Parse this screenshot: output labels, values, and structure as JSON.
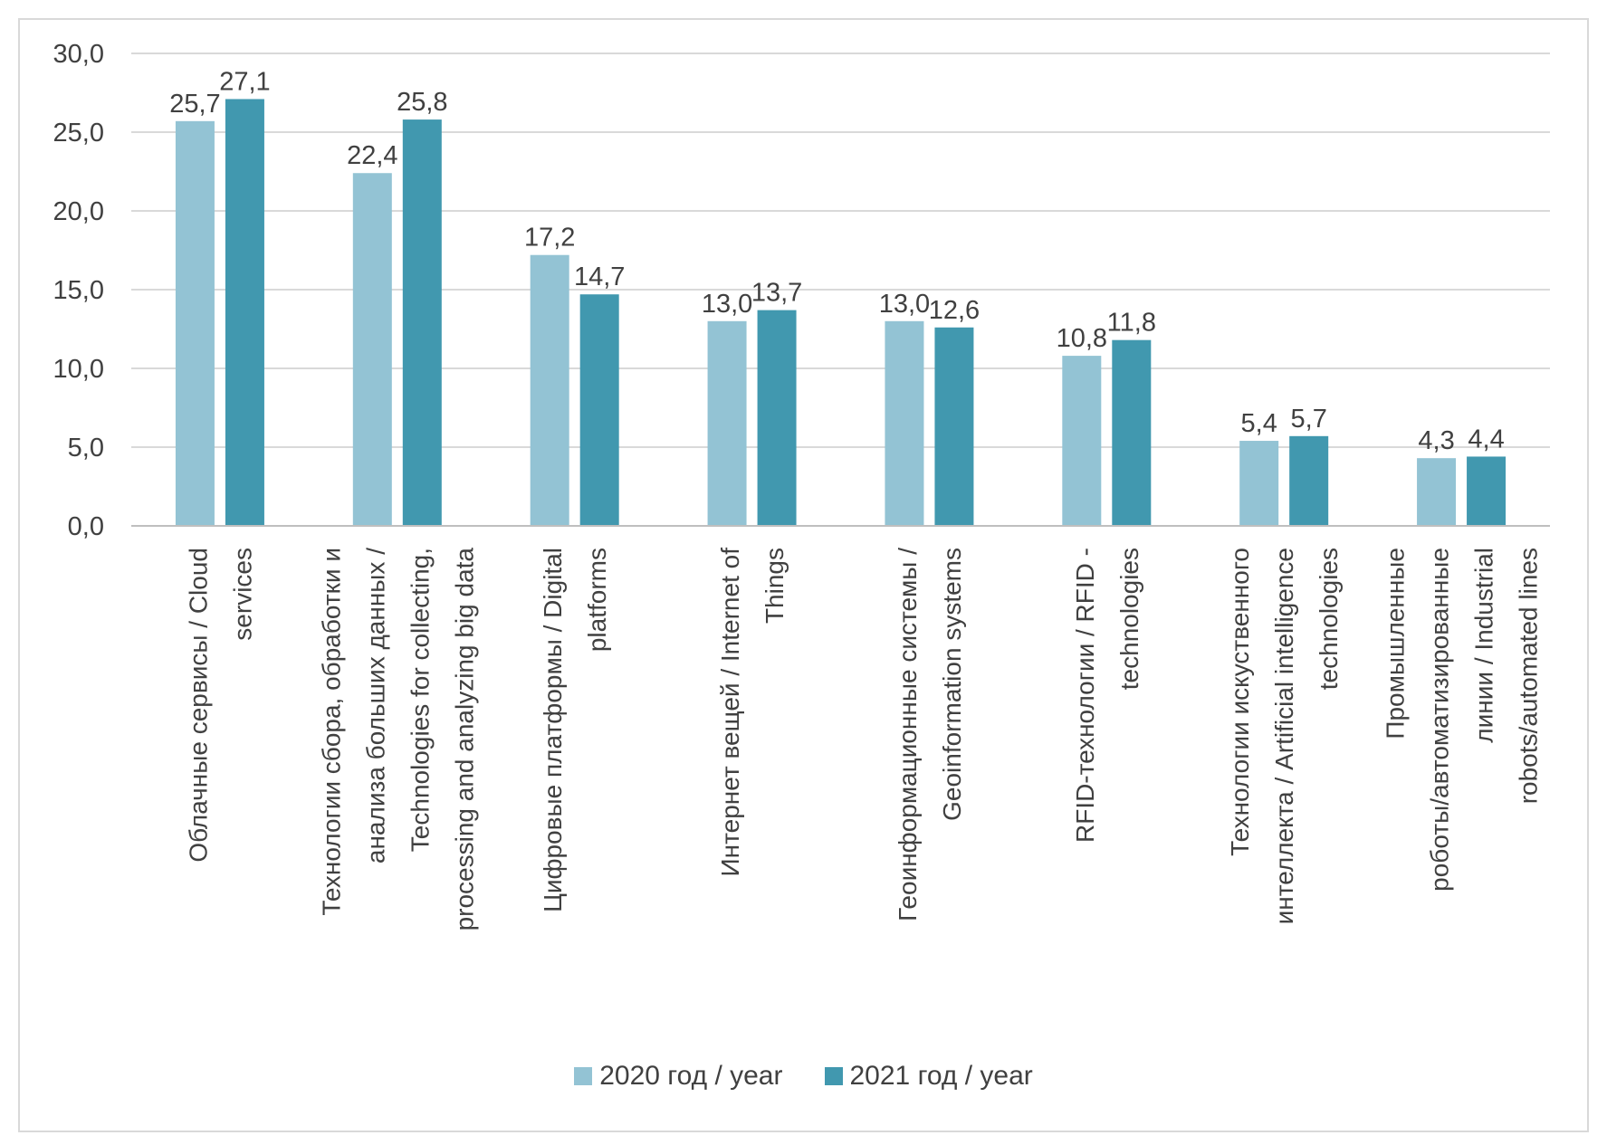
{
  "chart_data": {
    "type": "bar",
    "categories": [
      [
        "Облачные сервисы / Cloud",
        "services"
      ],
      [
        "Технологии сбора, обработки и",
        "анализа больших данных /",
        "Technologies for collecting,",
        "processing and analyzing big data"
      ],
      [
        "Цифровые платформы / Digital",
        "platforms"
      ],
      [
        "Интернет вещей / Internet of",
        "Things"
      ],
      [
        "Геоинформационные системы /",
        "Geoinformation systems"
      ],
      [
        "RFID-технологии / RFID -",
        "technologies"
      ],
      [
        "Технологии искуственного",
        "интеллекта / Artificial intelligence",
        "technologies"
      ],
      [
        "Промышленные",
        "роботы/автоматизированные",
        "линии / Industrial",
        "robots/automated lines"
      ]
    ],
    "series": [
      {
        "name": "2020 год / year",
        "color": "#93c3d4",
        "values": [
          25.7,
          22.4,
          17.2,
          13.0,
          13.0,
          10.8,
          5.4,
          4.3
        ],
        "labels": [
          "25,7",
          "22,4",
          "17,2",
          "13,0",
          "13,0",
          "10,8",
          "5,4",
          "4,3"
        ]
      },
      {
        "name": "2021 год / year",
        "color": "#4198af",
        "values": [
          27.1,
          25.8,
          14.7,
          13.7,
          12.6,
          11.8,
          5.7,
          4.4
        ],
        "labels": [
          "27,1",
          "25,8",
          "14,7",
          "13,7",
          "12,6",
          "11,8",
          "5,7",
          "4,4"
        ]
      }
    ],
    "ylim": [
      0,
      30
    ],
    "yticks": [
      "0,0",
      "5,0",
      "10,0",
      "15,0",
      "20,0",
      "25,0",
      "30,0"
    ],
    "grid": true,
    "legend": "bottom",
    "title": "",
    "xlabel": "",
    "ylabel": ""
  }
}
